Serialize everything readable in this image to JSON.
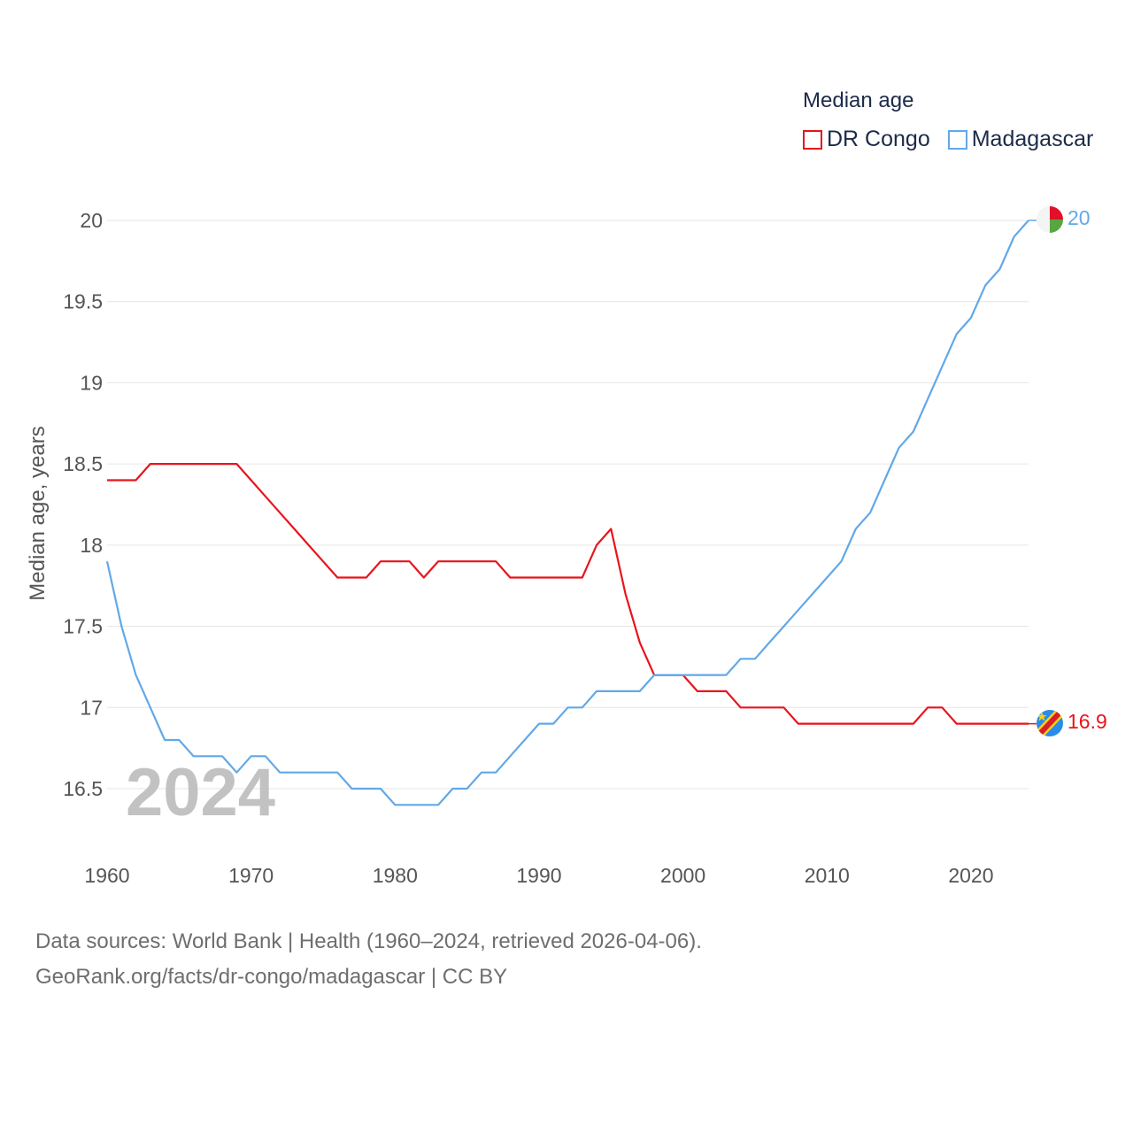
{
  "legend": {
    "title": "Median age",
    "items": [
      {
        "label": "DR Congo",
        "color": "#e8141c"
      },
      {
        "label": "Madagascar",
        "color": "#62a8e8"
      }
    ]
  },
  "source": {
    "line1": "Data sources: World Bank | Health (1960–2024, retrieved 2026-04-06).",
    "line2": "GeoRank.org/facts/dr-congo/madagascar | CC BY"
  },
  "chart_data": {
    "type": "line",
    "title": "Median age",
    "xlabel": "",
    "ylabel": "Median age, years",
    "year_label": "2024",
    "xlim": [
      1960,
      2024
    ],
    "ylim": [
      16.5,
      20
    ],
    "x_ticks": [
      1960,
      1970,
      1980,
      1990,
      2000,
      2010,
      2020
    ],
    "y_ticks": [
      16.5,
      17,
      17.5,
      18,
      18.5,
      19,
      19.5,
      20
    ],
    "y_tick_labels": [
      "16.5",
      "17",
      "17.5",
      "18",
      "18.5",
      "19",
      "19.5",
      "20"
    ],
    "x": [
      1960,
      1961,
      1962,
      1963,
      1964,
      1965,
      1966,
      1967,
      1968,
      1969,
      1970,
      1971,
      1972,
      1973,
      1974,
      1975,
      1976,
      1977,
      1978,
      1979,
      1980,
      1981,
      1982,
      1983,
      1984,
      1985,
      1986,
      1987,
      1988,
      1989,
      1990,
      1991,
      1992,
      1993,
      1994,
      1995,
      1996,
      1997,
      1998,
      1999,
      2000,
      2001,
      2002,
      2003,
      2004,
      2005,
      2006,
      2007,
      2008,
      2009,
      2010,
      2011,
      2012,
      2013,
      2014,
      2015,
      2016,
      2017,
      2018,
      2019,
      2020,
      2021,
      2022,
      2023,
      2024
    ],
    "series": [
      {
        "name": "DR Congo",
        "color": "#e8141c",
        "end_label": "16.9",
        "values": [
          18.4,
          18.4,
          18.4,
          18.5,
          18.5,
          18.5,
          18.5,
          18.5,
          18.5,
          18.5,
          18.4,
          18.3,
          18.2,
          18.1,
          18.0,
          17.9,
          17.8,
          17.8,
          17.8,
          17.9,
          17.9,
          17.9,
          17.8,
          17.9,
          17.9,
          17.9,
          17.9,
          17.9,
          17.8,
          17.8,
          17.8,
          17.8,
          17.8,
          17.8,
          18.0,
          18.1,
          17.7,
          17.4,
          17.2,
          17.2,
          17.2,
          17.1,
          17.1,
          17.1,
          17.0,
          17.0,
          17.0,
          17.0,
          16.9,
          16.9,
          16.9,
          16.9,
          16.9,
          16.9,
          16.9,
          16.9,
          16.9,
          17.0,
          17.0,
          16.9,
          16.9,
          16.9,
          16.9,
          16.9,
          16.9
        ]
      },
      {
        "name": "Madagascar",
        "color": "#62a8e8",
        "end_label": "20",
        "values": [
          17.9,
          17.5,
          17.2,
          17.0,
          16.8,
          16.8,
          16.7,
          16.7,
          16.7,
          16.6,
          16.7,
          16.7,
          16.6,
          16.6,
          16.6,
          16.6,
          16.6,
          16.5,
          16.5,
          16.5,
          16.4,
          16.4,
          16.4,
          16.4,
          16.5,
          16.5,
          16.6,
          16.6,
          16.7,
          16.8,
          16.9,
          16.9,
          17.0,
          17.0,
          17.1,
          17.1,
          17.1,
          17.1,
          17.2,
          17.2,
          17.2,
          17.2,
          17.2,
          17.2,
          17.3,
          17.3,
          17.4,
          17.5,
          17.6,
          17.7,
          17.8,
          17.9,
          18.1,
          18.2,
          18.4,
          18.6,
          18.7,
          18.9,
          19.1,
          19.3,
          19.4,
          19.6,
          19.7,
          19.9,
          20.0
        ]
      }
    ]
  }
}
